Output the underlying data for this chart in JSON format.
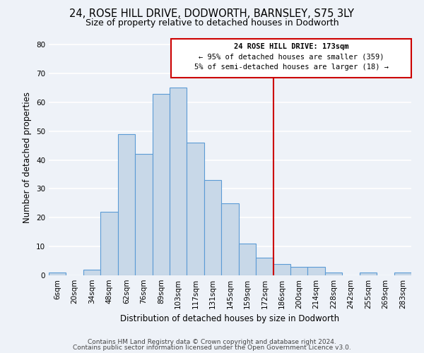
{
  "title": "24, ROSE HILL DRIVE, DODWORTH, BARNSLEY, S75 3LY",
  "subtitle": "Size of property relative to detached houses in Dodworth",
  "xlabel": "Distribution of detached houses by size in Dodworth",
  "ylabel": "Number of detached properties",
  "bar_labels": [
    "6sqm",
    "20sqm",
    "34sqm",
    "48sqm",
    "62sqm",
    "76sqm",
    "89sqm",
    "103sqm",
    "117sqm",
    "131sqm",
    "145sqm",
    "159sqm",
    "172sqm",
    "186sqm",
    "200sqm",
    "214sqm",
    "228sqm",
    "242sqm",
    "255sqm",
    "269sqm",
    "283sqm"
  ],
  "bar_values": [
    1,
    0,
    2,
    22,
    49,
    42,
    63,
    65,
    46,
    33,
    25,
    11,
    6,
    4,
    3,
    3,
    1,
    0,
    1,
    0,
    1
  ],
  "bar_color": "#c8d8e8",
  "bar_edge_color": "#5b9bd5",
  "vline_x_index": 12,
  "vline_color": "#cc0000",
  "annotation_title": "24 ROSE HILL DRIVE: 173sqm",
  "annotation_line1": "← 95% of detached houses are smaller (359)",
  "annotation_line2": "5% of semi-detached houses are larger (18) →",
  "annotation_box_color": "#ffffff",
  "annotation_box_edge": "#cc0000",
  "ylim": [
    0,
    82
  ],
  "yticks": [
    0,
    10,
    20,
    30,
    40,
    50,
    60,
    70,
    80
  ],
  "footer1": "Contains HM Land Registry data © Crown copyright and database right 2024.",
  "footer2": "Contains public sector information licensed under the Open Government Licence v3.0.",
  "bg_color": "#eef2f8",
  "plot_bg_color": "#eef2f8",
  "grid_color": "#ffffff",
  "title_fontsize": 10.5,
  "subtitle_fontsize": 9,
  "axis_label_fontsize": 8.5,
  "tick_fontsize": 7.5,
  "footer_fontsize": 6.5
}
